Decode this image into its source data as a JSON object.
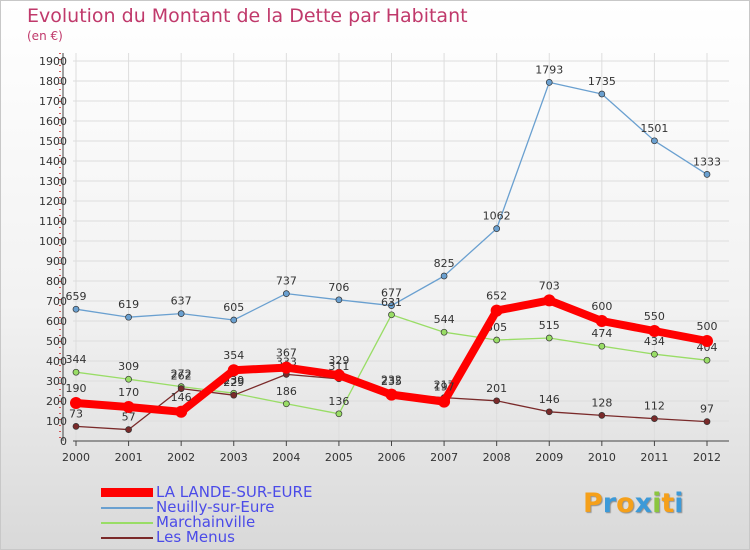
{
  "header": {
    "title": "Evolution du Montant de la Dette par Habitant",
    "subtitle": "(en €)"
  },
  "chart_data": {
    "type": "line",
    "title": "Evolution du Montant de la Dette par Habitant",
    "subtitle": "(en €)",
    "x": [
      2000,
      2001,
      2002,
      2003,
      2004,
      2005,
      2006,
      2007,
      2008,
      2009,
      2010,
      2011,
      2012
    ],
    "ylim": [
      0,
      1900
    ],
    "yticks": [
      0,
      100,
      200,
      300,
      400,
      500,
      600,
      700,
      800,
      900,
      1000,
      1100,
      1200,
      1300,
      1400,
      1500,
      1600,
      1700,
      1800,
      1900
    ],
    "grid": true,
    "legend_position": "bottom-left",
    "series": [
      {
        "name": "Neuilly-sur-Eure",
        "color": "#6aa0d0",
        "values": [
          659,
          619,
          637,
          605,
          737,
          706,
          677,
          825,
          1062,
          1793,
          1735,
          1501,
          1333
        ]
      },
      {
        "name": "Marchainville",
        "color": "#99dd66",
        "values": [
          344,
          309,
          272,
          239,
          186,
          136,
          631,
          544,
          505,
          515,
          474,
          434,
          404
        ]
      },
      {
        "name": "Les Menus",
        "color": "#7a2a2a",
        "values": [
          73,
          57,
          262,
          229,
          333,
          311,
          235,
          217,
          201,
          146,
          128,
          112,
          97
        ]
      },
      {
        "name": "LA LANDE-SUR-EURE",
        "color": "#ff0000",
        "values": [
          190,
          170,
          146,
          354,
          367,
          329,
          232,
          197,
          652,
          703,
          600,
          550,
          500
        ]
      }
    ]
  },
  "legend": {
    "items": [
      {
        "label": "LA LANDE-SUR-EURE",
        "color": "#ff0000"
      },
      {
        "label": "Neuilly-sur-Eure",
        "color": "#6aa0d0"
      },
      {
        "label": "Marchainville",
        "color": "#99dd66"
      },
      {
        "label": "Les Menus",
        "color": "#7a2a2a"
      }
    ]
  },
  "logo": {
    "letters": [
      "P",
      "r",
      "o",
      "x",
      "i",
      "t",
      "i"
    ],
    "colors": [
      "#f5a01a",
      "#3d9ad8",
      "#f5a01a",
      "#3d9ad8",
      "#8cc63e",
      "#f5a01a",
      "#3d9ad8"
    ]
  }
}
